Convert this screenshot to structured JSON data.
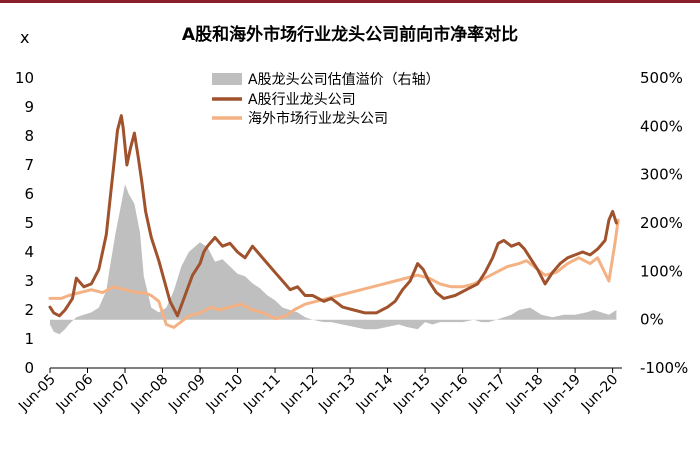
{
  "chart_data": {
    "type": "line",
    "title": "A股和海外市场行业龙头公司前向市净率对比",
    "ylabel_left": "x",
    "ylim_left": [
      0,
      10
    ],
    "ylim_right": [
      -100,
      500
    ],
    "left_ticks": [
      "0",
      "1",
      "2",
      "3",
      "4",
      "5",
      "6",
      "7",
      "8",
      "9",
      "10"
    ],
    "right_ticks": [
      "-100%",
      "0%",
      "100%",
      "200%",
      "300%",
      "400%",
      "500%"
    ],
    "x_labels": [
      "Jun-05",
      "Jun-06",
      "Jun-07",
      "Jun-08",
      "Jun-09",
      "Jun-10",
      "Jun-11",
      "Jun-12",
      "Jun-13",
      "Jun-14",
      "Jun-15",
      "Jun-16",
      "Jun-17",
      "Jun-18",
      "Jun-19",
      "Jun-20"
    ],
    "legend": [
      "A股龙头公司估值溢价（右轴）",
      "A股行业龙头公司",
      "海外市场行业龙头公司"
    ],
    "colors": {
      "premium": "#bfbfbf",
      "a_share": "#a0522d",
      "overseas": "#f4b183",
      "header_bar": "#8b1e2b"
    },
    "series": [
      {
        "name": "A股龙头公司估值溢价（右轴）",
        "axis": "right",
        "kind": "area",
        "x": [
          2005.5,
          2005.6,
          2005.75,
          2005.9,
          2006.0,
          2006.2,
          2006.4,
          2006.6,
          2006.8,
          2007.0,
          2007.1,
          2007.25,
          2007.4,
          2007.5,
          2007.6,
          2007.75,
          2007.9,
          2008.0,
          2008.2,
          2008.4,
          2008.6,
          2008.8,
          2009.0,
          2009.2,
          2009.5,
          2009.7,
          2009.9,
          2010.1,
          2010.3,
          2010.5,
          2010.7,
          2010.9,
          2011.1,
          2011.3,
          2011.5,
          2011.7,
          2011.9,
          2012.1,
          2012.3,
          2012.5,
          2012.8,
          2013.0,
          2013.3,
          2013.6,
          2013.9,
          2014.2,
          2014.5,
          2014.8,
          2015.0,
          2015.3,
          2015.5,
          2015.7,
          2015.9,
          2016.2,
          2016.5,
          2016.8,
          2017.0,
          2017.2,
          2017.4,
          2017.6,
          2017.8,
          2018.0,
          2018.3,
          2018.6,
          2018.9,
          2019.2,
          2019.5,
          2019.8,
          2020.0,
          2020.2,
          2020.4,
          2020.5,
          2020.6
        ],
        "values": [
          -10,
          -25,
          -30,
          -20,
          -10,
          5,
          10,
          15,
          25,
          60,
          110,
          180,
          240,
          280,
          260,
          240,
          180,
          90,
          25,
          15,
          25,
          60,
          110,
          140,
          160,
          150,
          120,
          125,
          110,
          95,
          90,
          75,
          65,
          50,
          40,
          25,
          20,
          15,
          5,
          0,
          -5,
          -5,
          -10,
          -15,
          -20,
          -20,
          -15,
          -10,
          -15,
          -20,
          -5,
          -10,
          -5,
          -5,
          -5,
          0,
          -5,
          -5,
          0,
          5,
          10,
          20,
          25,
          10,
          5,
          10,
          10,
          15,
          20,
          15,
          10,
          15,
          20
        ]
      },
      {
        "name": "A股行业龙头公司",
        "axis": "left",
        "x": [
          2005.5,
          2005.6,
          2005.75,
          2005.9,
          2006.0,
          2006.1,
          2006.2,
          2006.4,
          2006.6,
          2006.8,
          2007.0,
          2007.1,
          2007.2,
          2007.3,
          2007.4,
          2007.45,
          2007.55,
          2007.65,
          2007.75,
          2007.85,
          2007.95,
          2008.05,
          2008.2,
          2008.4,
          2008.55,
          2008.7,
          2008.9,
          2009.1,
          2009.3,
          2009.5,
          2009.6,
          2009.7,
          2009.9,
          2010.1,
          2010.3,
          2010.5,
          2010.7,
          2010.9,
          2011.1,
          2011.3,
          2011.5,
          2011.7,
          2011.9,
          2012.1,
          2012.3,
          2012.5,
          2012.8,
          2013.0,
          2013.3,
          2013.6,
          2013.9,
          2014.2,
          2014.5,
          2014.7,
          2014.9,
          2015.1,
          2015.3,
          2015.45,
          2015.6,
          2015.8,
          2016.0,
          2016.3,
          2016.6,
          2016.9,
          2017.1,
          2017.3,
          2017.45,
          2017.6,
          2017.8,
          2018.0,
          2018.15,
          2018.3,
          2018.5,
          2018.7,
          2018.9,
          2019.1,
          2019.3,
          2019.5,
          2019.7,
          2019.9,
          2020.1,
          2020.3,
          2020.4,
          2020.5,
          2020.6
        ],
        "values": [
          2.1,
          1.9,
          1.8,
          2.0,
          2.2,
          2.4,
          3.1,
          2.8,
          2.9,
          3.4,
          4.6,
          5.8,
          7.0,
          8.2,
          8.7,
          8.3,
          7.0,
          7.6,
          8.1,
          7.3,
          6.4,
          5.4,
          4.5,
          3.7,
          3.0,
          2.3,
          1.8,
          2.5,
          3.2,
          3.6,
          4.0,
          4.2,
          4.5,
          4.2,
          4.3,
          4.0,
          3.8,
          4.2,
          3.9,
          3.6,
          3.3,
          3.0,
          2.7,
          2.8,
          2.5,
          2.5,
          2.3,
          2.4,
          2.1,
          2.0,
          1.9,
          1.9,
          2.1,
          2.3,
          2.7,
          3.0,
          3.6,
          3.4,
          3.0,
          2.6,
          2.4,
          2.5,
          2.7,
          2.9,
          3.3,
          3.8,
          4.3,
          4.4,
          4.2,
          4.3,
          4.1,
          3.8,
          3.4,
          2.9,
          3.3,
          3.6,
          3.8,
          3.9,
          4.0,
          3.9,
          4.1,
          4.4,
          5.1,
          5.4,
          5.0
        ]
      },
      {
        "name": "海外市场行业龙头公司",
        "axis": "left",
        "x": [
          2005.5,
          2005.8,
          2006.0,
          2006.3,
          2006.6,
          2006.9,
          2007.2,
          2007.5,
          2007.8,
          2008.0,
          2008.2,
          2008.4,
          2008.6,
          2008.8,
          2009.0,
          2009.2,
          2009.5,
          2009.8,
          2010.0,
          2010.3,
          2010.6,
          2010.9,
          2011.2,
          2011.5,
          2011.8,
          2012.0,
          2012.3,
          2012.6,
          2012.9,
          2013.2,
          2013.5,
          2013.8,
          2014.1,
          2014.4,
          2014.7,
          2015.0,
          2015.3,
          2015.6,
          2015.9,
          2016.2,
          2016.5,
          2016.8,
          2017.1,
          2017.4,
          2017.7,
          2018.0,
          2018.2,
          2018.4,
          2018.7,
          2019.0,
          2019.3,
          2019.6,
          2019.9,
          2020.1,
          2020.25,
          2020.4,
          2020.55,
          2020.65
        ],
        "values": [
          2.4,
          2.4,
          2.5,
          2.6,
          2.7,
          2.6,
          2.8,
          2.7,
          2.6,
          2.6,
          2.5,
          2.3,
          1.5,
          1.4,
          1.6,
          1.8,
          1.9,
          2.1,
          2.0,
          2.1,
          2.2,
          2.0,
          1.9,
          1.7,
          1.8,
          2.0,
          2.2,
          2.3,
          2.4,
          2.5,
          2.6,
          2.7,
          2.8,
          2.9,
          3.0,
          3.1,
          3.2,
          3.1,
          2.9,
          2.8,
          2.8,
          2.9,
          3.1,
          3.3,
          3.5,
          3.6,
          3.7,
          3.5,
          3.2,
          3.3,
          3.6,
          3.8,
          3.6,
          3.8,
          3.4,
          3.0,
          4.2,
          5.1
        ]
      }
    ]
  }
}
